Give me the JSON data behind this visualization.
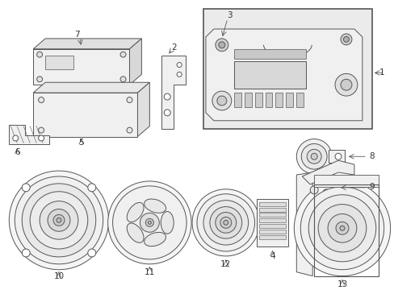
{
  "bg_color": "#ffffff",
  "line_color": "#555555",
  "label_color": "#333333",
  "lw": 0.7,
  "figsize": [
    4.89,
    3.6
  ],
  "dpi": 100
}
